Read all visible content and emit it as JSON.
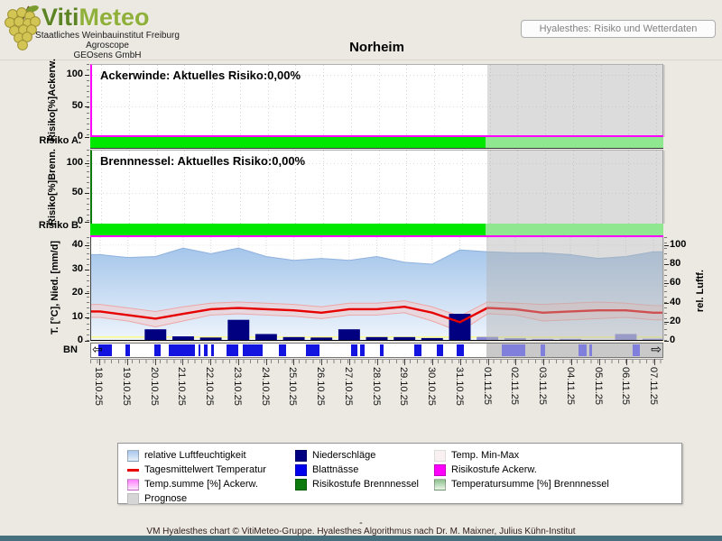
{
  "header": {
    "logo_title_part1": "Viti",
    "logo_title_part2": "Meteo",
    "logo_sub1": "Staatliches Weinbauinstitut Freiburg",
    "logo_sub2": "Agroscope",
    "logo_sub3": "GEOsens GmbH",
    "view_button": "Hyalesthes: Risiko und Wetterdaten"
  },
  "title": "Norheim",
  "icons": {
    "left_arrow": "⇦",
    "right_arrow": "⇨",
    "grapes": "grape-cluster-logo"
  },
  "charts": {
    "ackerwinde": {
      "title": "Ackerwinde: Aktuelles Risiko:0,00%",
      "current_risk_percent": "0,00%",
      "axis_label": "Risiko[%]Ackerw.",
      "axis_bottom_label": "Risiko A.",
      "ticks": [
        100,
        50,
        0
      ]
    },
    "brennnessel": {
      "title": "Brennnessel: Aktuelles Risiko:0,00%",
      "current_risk_percent": "0,00%",
      "axis_label": "Risiko[%]Brenn.",
      "axis_bottom_label": "Risiko B.",
      "ticks": [
        100,
        50,
        0
      ]
    },
    "weather": {
      "left_axis_label": "T. [°C], Nied. [mm/d]",
      "left_ticks": [
        40,
        30,
        20,
        10,
        0
      ],
      "right_axis_label": "rel. Luftf.",
      "right_ticks": [
        100,
        80,
        60,
        40,
        20,
        0
      ],
      "bn_label": "BN"
    }
  },
  "chart_data": {
    "type": "line",
    "title": "Norheim",
    "x": [
      "18.10.25",
      "19.10.25",
      "20.10.25",
      "21.10.25",
      "22.10.25",
      "23.10.25",
      "24.10.25",
      "25.10.25",
      "26.10.25",
      "27.10.25",
      "28.10.25",
      "29.10.25",
      "30.10.25",
      "31.10.25",
      "01.11.25",
      "02.11.25",
      "03.11.25",
      "04.11.25",
      "05.11.25",
      "06.11.25",
      "07.11.25"
    ],
    "prognosis_start": "01.11.25",
    "prognosis_start_index": 14,
    "left_axis": {
      "label": "T. [°C], Nied. [mm/d]",
      "range": [
        0,
        40
      ]
    },
    "right_axis": {
      "label": "rel. Luftf.",
      "range": [
        0,
        100
      ]
    },
    "series": [
      {
        "name": "relative Luftfeuchtigkeit",
        "type": "area",
        "axis": "right",
        "values": [
          90,
          87,
          88,
          97,
          91,
          97,
          88,
          84,
          86,
          84,
          88,
          82,
          80,
          95,
          93,
          92,
          92,
          90,
          86,
          88,
          93
        ]
      },
      {
        "name": "Tagesmittelwert Temperatur",
        "type": "line",
        "axis": "left",
        "values": [
          12,
          10.5,
          9,
          11,
          13,
          13.5,
          13,
          12.5,
          11.5,
          13,
          13,
          14,
          11.5,
          7.5,
          13.5,
          13,
          11.5,
          12,
          12.5,
          12.5,
          11.5
        ]
      },
      {
        "name": "Temp. Max",
        "type": "line",
        "axis": "left",
        "values": [
          15,
          13.5,
          12,
          14,
          15.5,
          16,
          15.5,
          15,
          14,
          15.5,
          15.5,
          16.5,
          14,
          10,
          16,
          15.5,
          15,
          15.5,
          16,
          15.5,
          14.5
        ]
      },
      {
        "name": "Temp. Min",
        "type": "line",
        "axis": "left",
        "values": [
          9.5,
          8,
          5.5,
          8,
          10.5,
          11,
          10.5,
          10,
          9,
          10.5,
          10.5,
          11.5,
          8,
          3.5,
          11,
          10.5,
          8,
          8.5,
          9,
          9.5,
          8.5
        ]
      },
      {
        "name": "Niederschläge",
        "type": "bar",
        "axis": "left",
        "values": [
          0,
          0,
          4.5,
          1.5,
          1,
          8.5,
          2.5,
          1.2,
          1,
          4.5,
          1.2,
          1.2,
          0.8,
          11,
          1.3,
          0.7,
          0.4,
          0.4,
          0,
          2.5,
          0.5
        ]
      },
      {
        "name": "Risiko Ackerwinde [%]",
        "type": "line",
        "axis": "risk",
        "values": [
          0,
          0,
          0,
          0,
          0,
          0,
          0,
          0,
          0,
          0,
          0,
          0,
          0,
          0,
          0,
          0,
          0,
          0,
          0,
          0,
          0
        ]
      },
      {
        "name": "Risiko Brennnessel [%]",
        "type": "line",
        "axis": "risk",
        "values": [
          0,
          0,
          0,
          0,
          0,
          0,
          0,
          0,
          0,
          0,
          0,
          0,
          0,
          0,
          0,
          0,
          0,
          0,
          0,
          0,
          0
        ]
      }
    ],
    "yellow_line_value": 1.2,
    "blattnaesse_segments": [
      [
        0.013,
        0.037
      ],
      [
        0.06,
        0.068
      ],
      [
        0.11,
        0.121
      ],
      [
        0.135,
        0.181
      ],
      [
        0.187,
        0.191
      ],
      [
        0.197,
        0.204
      ],
      [
        0.209,
        0.214
      ],
      [
        0.236,
        0.256
      ],
      [
        0.265,
        0.3
      ],
      [
        0.327,
        0.34
      ],
      [
        0.375,
        0.398
      ],
      [
        0.453,
        0.464
      ],
      [
        0.47,
        0.477
      ],
      [
        0.504,
        0.511
      ],
      [
        0.564,
        0.576
      ],
      [
        0.603,
        0.615
      ],
      [
        0.638,
        0.65
      ],
      [
        0.717,
        0.757
      ],
      [
        0.784,
        0.792
      ],
      [
        0.85,
        0.864
      ],
      [
        0.869,
        0.874
      ],
      [
        0.945,
        0.957
      ]
    ]
  },
  "legend": {
    "columns": [
      [
        {
          "label": "relative Luftfeuchtigkeit",
          "swatch": "humidity"
        },
        {
          "label": "Tagesmittelwert Temperatur",
          "swatch": "redline"
        },
        {
          "label": "Temp.summe [%] Ackerw.",
          "swatch": "tempsum-ackerw"
        },
        {
          "label": "Prognose",
          "swatch": "prognose"
        }
      ],
      [
        {
          "label": "Niederschläge",
          "swatch": "niederschlag"
        },
        {
          "label": "Blattnässe",
          "swatch": "blattnaesse"
        },
        {
          "label": "Risikostufe Brennnessel",
          "swatch": "risiko-brenn"
        }
      ],
      [
        {
          "label": "Temp. Min-Max",
          "swatch": "minmax"
        },
        {
          "label": "Risikostufe Ackerw.",
          "swatch": "risiko-ackerw"
        },
        {
          "label": "Temperatursumme [%] Brennnessel",
          "swatch": "tempsum-brenn"
        }
      ]
    ]
  },
  "colors": {
    "risk_ok_green": "#00e800",
    "prognosis_gray": "#d9d9d9",
    "temperature_red": "#e60000",
    "precipitation_navy": "#000080",
    "leaf_wetness_blue": "#1414e0",
    "ackerwinde_magenta": "#ff00ff",
    "brennnessel_green": "#0c7a0c",
    "humidity_blue": "#9cc0e8",
    "footer_bar_teal": "#47707e"
  },
  "footer": {
    "dash": "-",
    "credit": "VM Hyalesthes chart © VitiMeteo-Gruppe. Hyalesthes Algorithmus nach Dr. M. Maixner, Julius Kühn-Institut"
  }
}
